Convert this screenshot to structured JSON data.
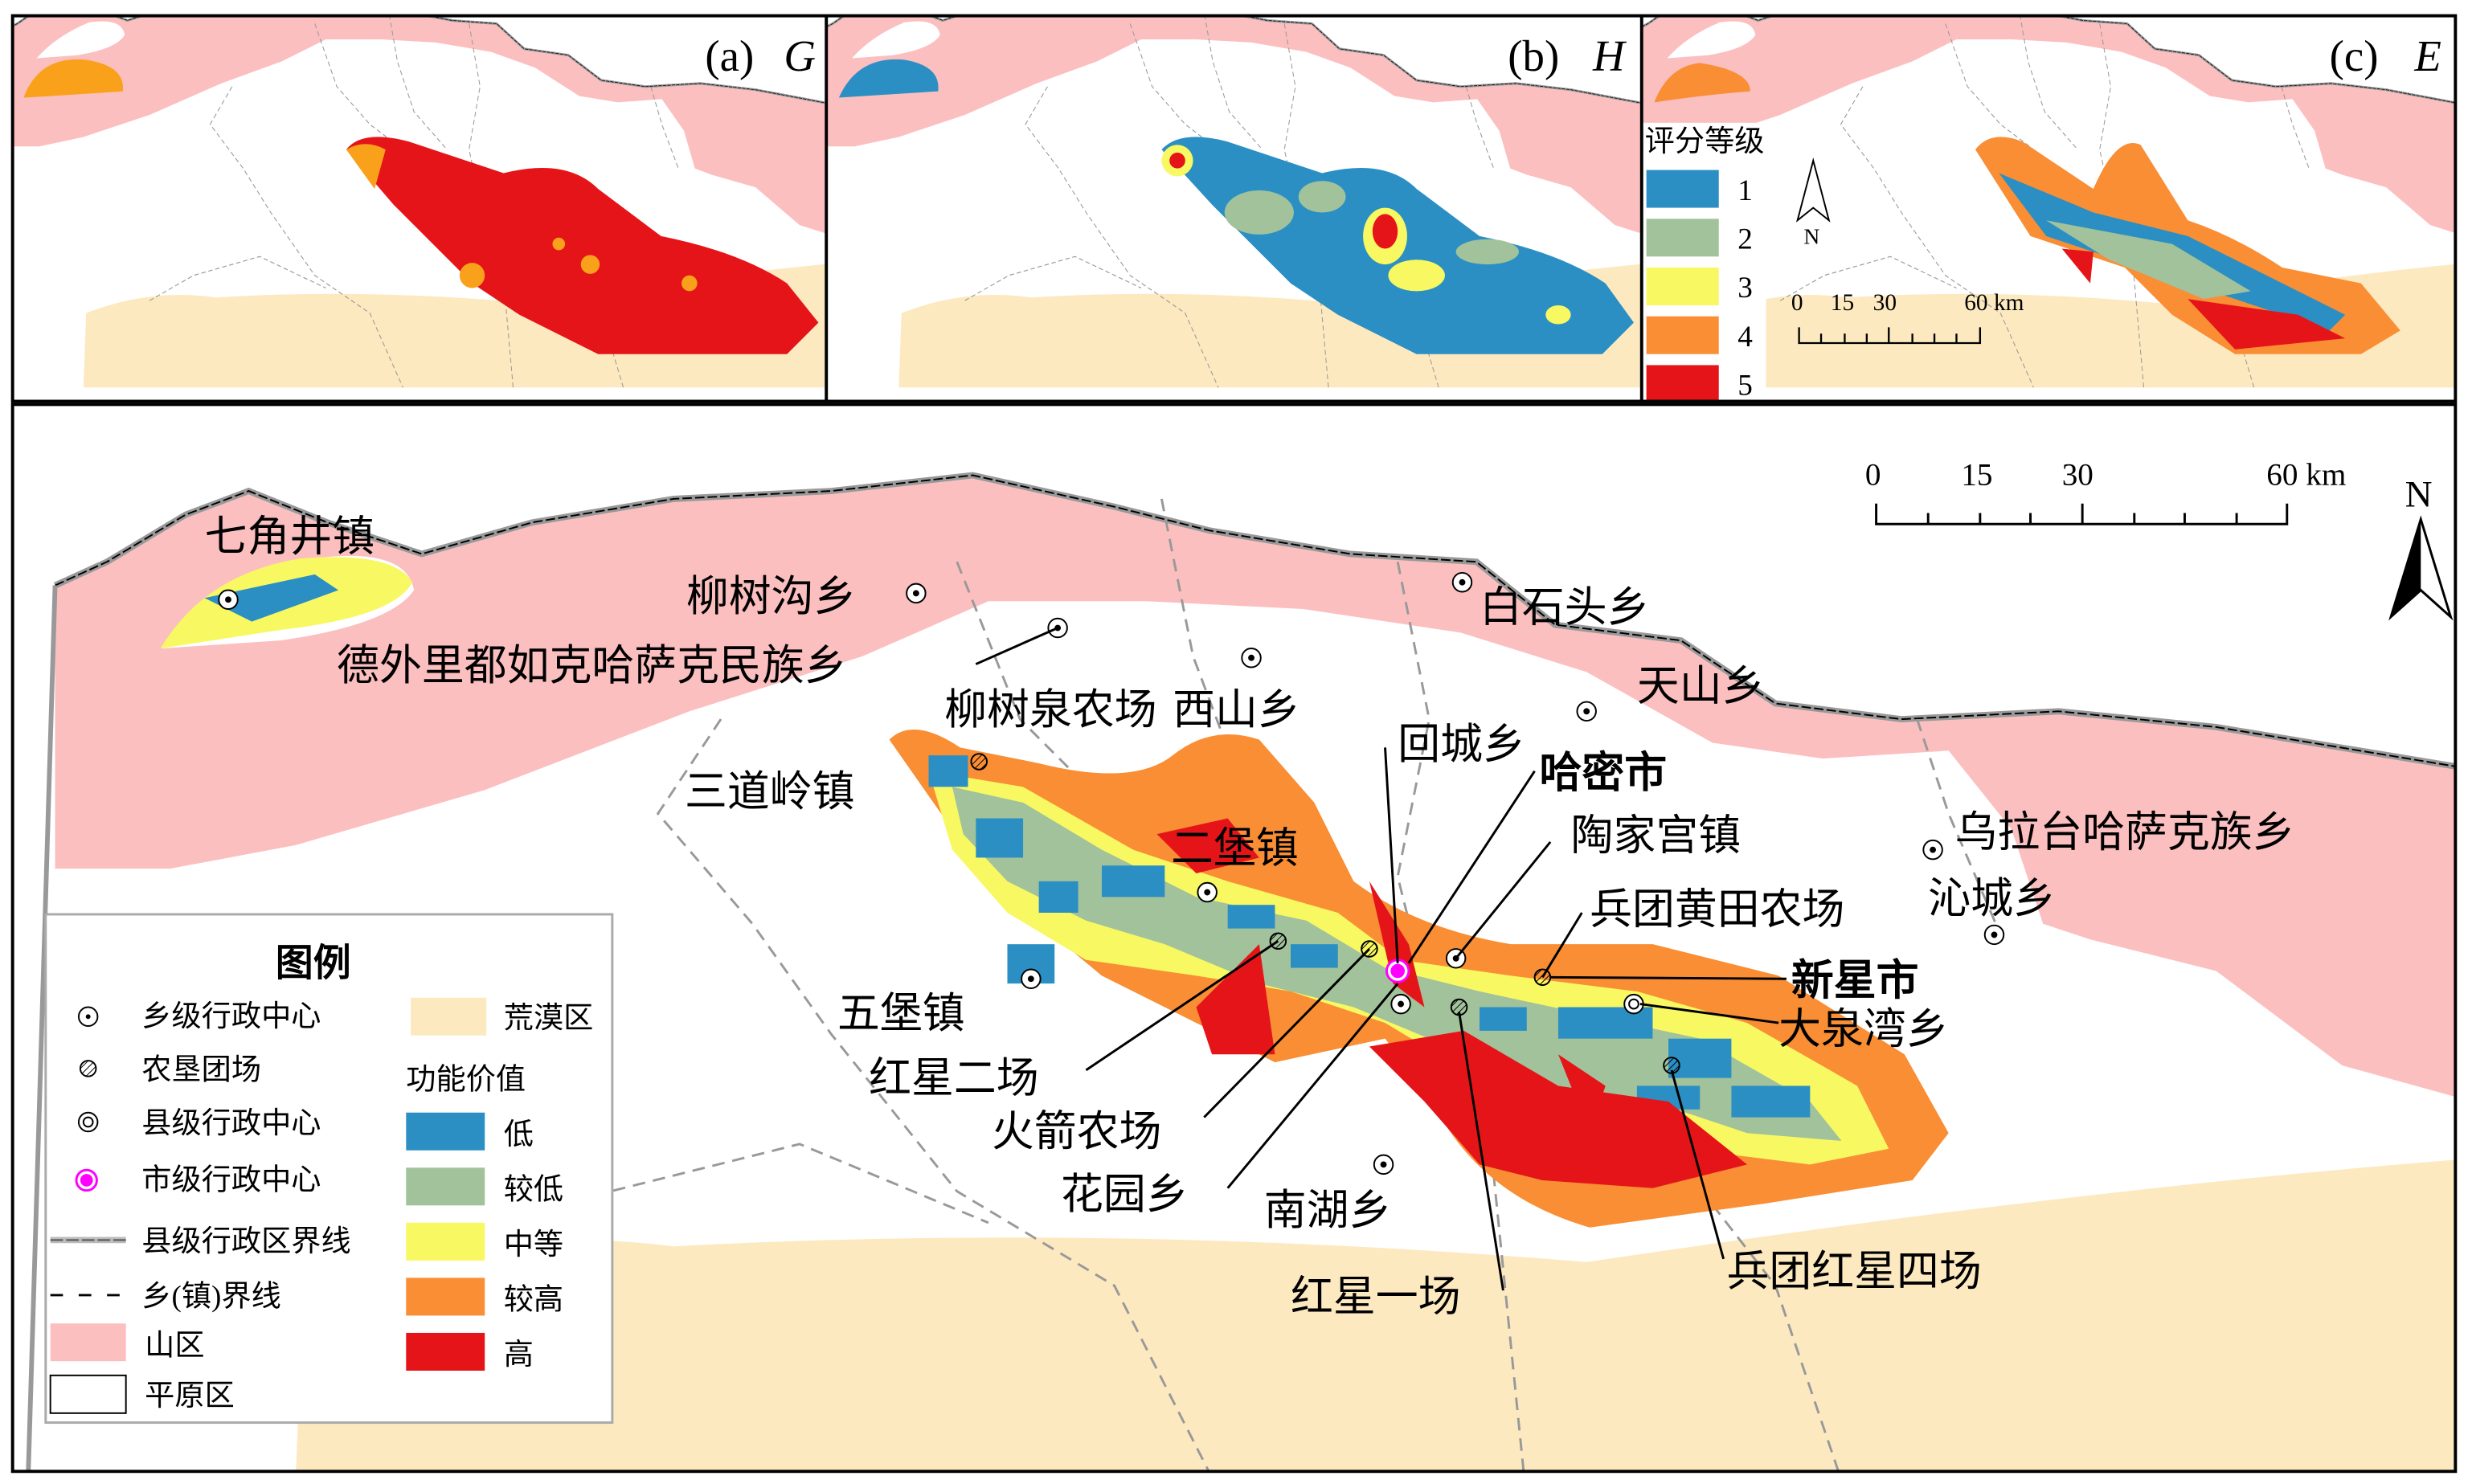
{
  "colors": {
    "mountain": "#fcbfc0",
    "desert": "#fde9c0",
    "plain": "#ffffff",
    "low": "#2b8fc4",
    "lower": "#a1c29b",
    "medium": "#f8f862",
    "higher": "#f98e35",
    "high": "#e51418",
    "city_center": "#ff00ff"
  },
  "panels": [
    {
      "tag": "(a)",
      "var": "G"
    },
    {
      "tag": "(b)",
      "var": "H"
    },
    {
      "tag": "(c)",
      "var": "E"
    }
  ],
  "score_legend": {
    "title": "评分等级",
    "classes": [
      "1",
      "2",
      "3",
      "4",
      "5"
    ]
  },
  "scale_small": {
    "ticks": [
      "0",
      "15",
      "30",
      "60 km"
    ]
  },
  "scale_main": {
    "ticks": [
      "0",
      "15",
      "30",
      "60 km"
    ]
  },
  "north": "N",
  "legend": {
    "title": "图例",
    "symbols": [
      {
        "label": "乡级行政中心",
        "icon": "township-center-icon"
      },
      {
        "label": "农垦团场",
        "icon": "farm-regiment-icon"
      },
      {
        "label": "县级行政中心",
        "icon": "county-center-icon"
      },
      {
        "label": "市级行政中心",
        "icon": "city-center-icon"
      },
      {
        "label": "县级行政区界线",
        "icon": "county-boundary-line-icon"
      },
      {
        "label": "乡(镇)界线",
        "icon": "township-boundary-line-icon"
      },
      {
        "label": "山区",
        "icon": "mountain-area-swatch"
      },
      {
        "label": "平原区",
        "icon": "plain-area-swatch"
      }
    ],
    "desert_label": "荒漠区",
    "value_title": "功能价值",
    "values": [
      "低",
      "较低",
      "中等",
      "较高",
      "高"
    ]
  },
  "places": [
    {
      "name": "七角井镇"
    },
    {
      "name": "柳树沟乡"
    },
    {
      "name": "德外里都如克哈萨克民族乡"
    },
    {
      "name": "柳树泉农场"
    },
    {
      "name": "西山乡"
    },
    {
      "name": "白石头乡"
    },
    {
      "name": "天山乡"
    },
    {
      "name": "回城乡"
    },
    {
      "name": "哈密市"
    },
    {
      "name": "三道岭镇"
    },
    {
      "name": "二堡镇"
    },
    {
      "name": "陶家宫镇"
    },
    {
      "name": "乌拉台哈萨克族乡"
    },
    {
      "name": "兵团黄田农场"
    },
    {
      "name": "沁城乡"
    },
    {
      "name": "新星市"
    },
    {
      "name": "大泉湾乡"
    },
    {
      "name": "五堡镇"
    },
    {
      "name": "红星二场"
    },
    {
      "name": "火箭农场"
    },
    {
      "name": "花园乡"
    },
    {
      "name": "南湖乡"
    },
    {
      "name": "红星一场"
    },
    {
      "name": "兵团红星四场"
    }
  ]
}
